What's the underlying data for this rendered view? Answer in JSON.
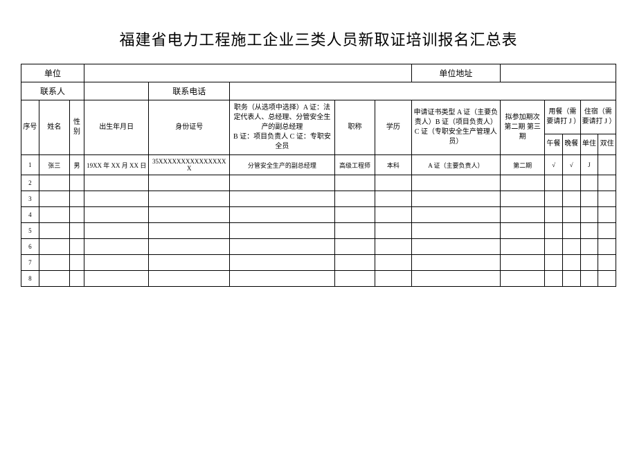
{
  "title": "福建省电力工程施工企业三类人员新取证培训报名汇总表",
  "meta": {
    "unit_label": "单位",
    "unit_value": "",
    "unit_address_label": "单位地址",
    "unit_address_value": "",
    "contact_label": "联系人",
    "contact_value": "",
    "phone_label": "联系电话",
    "phone_value": ""
  },
  "headers": {
    "seq": "序号",
    "name": "姓名",
    "gender": "性别",
    "birth": "出生年月日",
    "idnum": "身份证号",
    "position": "职务（从选项中选择）A 证：法定代表人、总经理、分管安全生产的副总经理\nB 证：项目负责人 C 证：专职安全员",
    "jobtitle": "职称",
    "edu": "学历",
    "cert": "申请证书类型 A 证（主要负责人）B 证（项目负责人）C 证（专职安全生产管理人员）",
    "phase": "拟参加期次第二期 第三期",
    "meal_group": "用餐（需要请打 J ）",
    "meal_lunch": "午餐",
    "meal_dinner": "晚餐",
    "stay_group": "住宿（需要请打 J ）",
    "stay_single": "单住",
    "stay_double": "双住"
  },
  "rows": [
    {
      "seq": "1",
      "name": "张三",
      "gender": "男",
      "birth": "19XX 年 XX 月 XX 日",
      "idnum": "35XXXXXXXXXXXXXXXX",
      "position": "分管安全生产的副总经理",
      "jobtitle": "高级工程师",
      "edu": "本科",
      "cert": "A 证（主要负责人）",
      "phase": "第二期",
      "meal_lunch": "√",
      "meal_dinner": "√",
      "stay_single": "J",
      "stay_double": ""
    },
    {
      "seq": "2"
    },
    {
      "seq": "3"
    },
    {
      "seq": "4"
    },
    {
      "seq": "5"
    },
    {
      "seq": "6"
    },
    {
      "seq": "7"
    },
    {
      "seq": "8"
    }
  ],
  "style": {
    "background_color": "#ffffff",
    "border_color": "#000000",
    "title_fontsize": 22,
    "header_fontsize": 10,
    "data_fontsize": 9,
    "font_family": "SimSun"
  }
}
